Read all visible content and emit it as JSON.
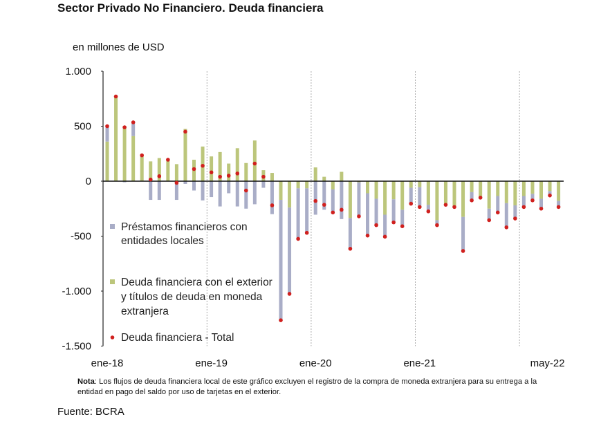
{
  "title": "Sector Privado No Financiero. Deuda financiera",
  "unit_label": "en millones de USD",
  "note_bold": "Nota",
  "note_text": ": Los flujos de deuda financiera local de este gráfico excluyen el registro de la compra de moneda extranjera para su entrega a la entidad en pago del saldo por uso de tarjetas en el exterior.",
  "source": "Fuente: BCRA",
  "chart_data": {
    "type": "bar",
    "stacked": true,
    "title": "Sector Privado No Financiero. Deuda financiera",
    "ylabel": "en millones de USD",
    "ylim": [
      -1500,
      1000
    ],
    "yticks": [
      1000,
      500,
      0,
      -500,
      -1000,
      -1500
    ],
    "ytick_labels": [
      "1.000",
      "500",
      "0",
      "-500",
      "-1.000",
      "-1.500"
    ],
    "x_start": "ene-18",
    "x_end": "may-22",
    "frequency": "monthly",
    "xtick_labels": [
      {
        "label": "ene-18",
        "index": 0
      },
      {
        "label": "ene-19",
        "index": 12
      },
      {
        "label": "ene-20",
        "index": 24
      },
      {
        "label": "ene-21",
        "index": 36
      },
      {
        "label": "may-22",
        "index": 52
      }
    ],
    "vertical_dashed_lines_at_index": [
      12,
      24,
      36,
      48
    ],
    "legend_placement": "inside-left",
    "series": [
      {
        "name": "Préstamos financieros con entidades locales",
        "name_lines": [
          "Préstamos financieros con",
          "entidades locales"
        ],
        "kind": "bar",
        "color": "#a9adc7",
        "values": [
          140,
          0,
          -10,
          125,
          0,
          -170,
          -170,
          0,
          -170,
          -25,
          -85,
          -175,
          -145,
          -230,
          -110,
          -230,
          -250,
          -210,
          -60,
          -300,
          -1095,
          -785,
          -460,
          -405,
          -305,
          -260,
          -210,
          -345,
          -280,
          -310,
          -385,
          -240,
          -200,
          -210,
          -150,
          -145,
          -180,
          -60,
          -45,
          0,
          0,
          -310,
          -75,
          0,
          -105,
          -150,
          -220,
          -120,
          -100,
          -60,
          -90,
          -40,
          -55
        ]
      },
      {
        "name": "Deuda financiera con el exterior y títulos de deuda en moneda extranjera",
        "name_lines": [
          "Deuda financiera con el exterior",
          "y títulos de deuda en moneda",
          "extranjera"
        ],
        "kind": "bar",
        "color": "#bcc67b",
        "values": [
          360,
          770,
          500,
          410,
          235,
          180,
          210,
          195,
          155,
          475,
          195,
          315,
          225,
          265,
          160,
          300,
          165,
          370,
          100,
          75,
          -170,
          -240,
          -65,
          -65,
          125,
          40,
          -75,
          85,
          -335,
          -10,
          -110,
          -160,
          -305,
          -165,
          -260,
          -60,
          -55,
          -215,
          -355,
          -215,
          -235,
          -325,
          -100,
          -150,
          -250,
          -135,
          -200,
          -220,
          -135,
          -115,
          -160,
          -90,
          -180
        ]
      },
      {
        "name": "Deuda financiera - Total",
        "name_lines": [
          "Deuda financiera - Total"
        ],
        "kind": "point",
        "color": "#d0201e",
        "values": [
          500,
          770,
          490,
          535,
          235,
          15,
          45,
          195,
          -15,
          450,
          110,
          140,
          80,
          40,
          50,
          70,
          -85,
          160,
          40,
          -220,
          -1265,
          -1025,
          -525,
          -470,
          -180,
          -215,
          -285,
          -260,
          -615,
          -320,
          -495,
          -400,
          -505,
          -375,
          -410,
          -205,
          -235,
          -275,
          -400,
          -215,
          -235,
          -635,
          -175,
          -150,
          -355,
          -285,
          -420,
          -340,
          -235,
          -175,
          -250,
          -130,
          -235
        ]
      }
    ],
    "grid": false
  }
}
